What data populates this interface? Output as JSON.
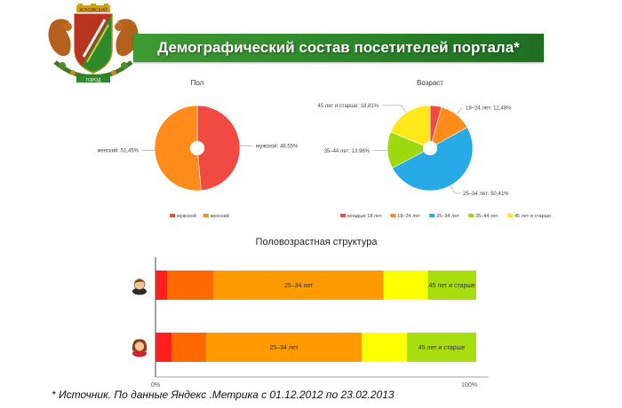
{
  "header": {
    "title": "Демографический состав посетителей портала*",
    "emblem_top_text": "ЖУКОВСКИЙ",
    "emblem_bottom_text": "ГОРОД"
  },
  "colors": {
    "banner": "#2f8a2b",
    "male": "#f04a43",
    "female": "#ff8c1a",
    "age_under18": "#f04a43",
    "age_18_24": "#ff8c1a",
    "age_25_34": "#27aae6",
    "age_35_44": "#9ed80f",
    "age_45plus": "#ffe81a",
    "bar_seg1": "#ff1f1f",
    "bar_seg2": "#ff6a00",
    "bar_seg3": "#ff9a00",
    "bar_seg4": "#ffff00",
    "bar_seg5": "#a8dd10"
  },
  "chart_data": [
    {
      "type": "pie",
      "title": "Пол",
      "slices": [
        {
          "label": "мужской",
          "value": 48.55,
          "data_label": "мужской: 48,55%",
          "color": "#f04a43"
        },
        {
          "label": "женский",
          "value": 51.45,
          "data_label": "женский: 51,45%",
          "color": "#ff8c1a"
        }
      ],
      "legend": [
        "мужской",
        "женский"
      ],
      "legend_position": "bottom"
    },
    {
      "type": "pie",
      "title": "Возраст",
      "slices": [
        {
          "label": "младше 18 лет",
          "value": 4.36,
          "data_label": "",
          "color": "#f04a43"
        },
        {
          "label": "18–24 лет",
          "value": 12.48,
          "data_label": "18–24 лет: 12,48%",
          "color": "#ff8c1a"
        },
        {
          "label": "25–34 лет",
          "value": 50.41,
          "data_label": "25–34 лет: 50,41%",
          "color": "#27aae6"
        },
        {
          "label": "35–44 лет",
          "value": 13.96,
          "data_label": "35–44 лет: 13,96%",
          "color": "#9ed80f"
        },
        {
          "label": "45 лет и старше",
          "value": 18.81,
          "data_label": "45 лет и старше: 18,81%",
          "color": "#ffe81a"
        }
      ],
      "legend": [
        "младше 18 лет",
        "18–24 лет",
        "25–34 лет",
        "35–44 лет",
        "45 лет и старше"
      ],
      "legend_position": "bottom"
    },
    {
      "type": "bar",
      "title": "Половозрастная структура",
      "orientation": "horizontal",
      "stacked": true,
      "xlim": [
        0,
        100
      ],
      "ticks": [
        "0%",
        "100%"
      ],
      "rows": [
        {
          "name": "male",
          "icon": "male-avatar-icon",
          "segments": [
            3.6,
            14.6,
            52.9,
            13.8,
            15.1
          ]
        },
        {
          "name": "female",
          "icon": "female-avatar-icon",
          "segments": [
            5.0,
            10.8,
            48.5,
            14.1,
            21.6
          ]
        }
      ],
      "segment_colors": [
        "#ff1f1f",
        "#ff6a00",
        "#ff9a00",
        "#ffff00",
        "#a8dd10"
      ],
      "segment_labels": [
        "",
        "",
        "25–34 лет",
        "",
        "45 лет и старше"
      ]
    }
  ],
  "footnote": "* Источник. По данные Яндекс .Метрика с 01.12.2012 по 23.02.2013"
}
